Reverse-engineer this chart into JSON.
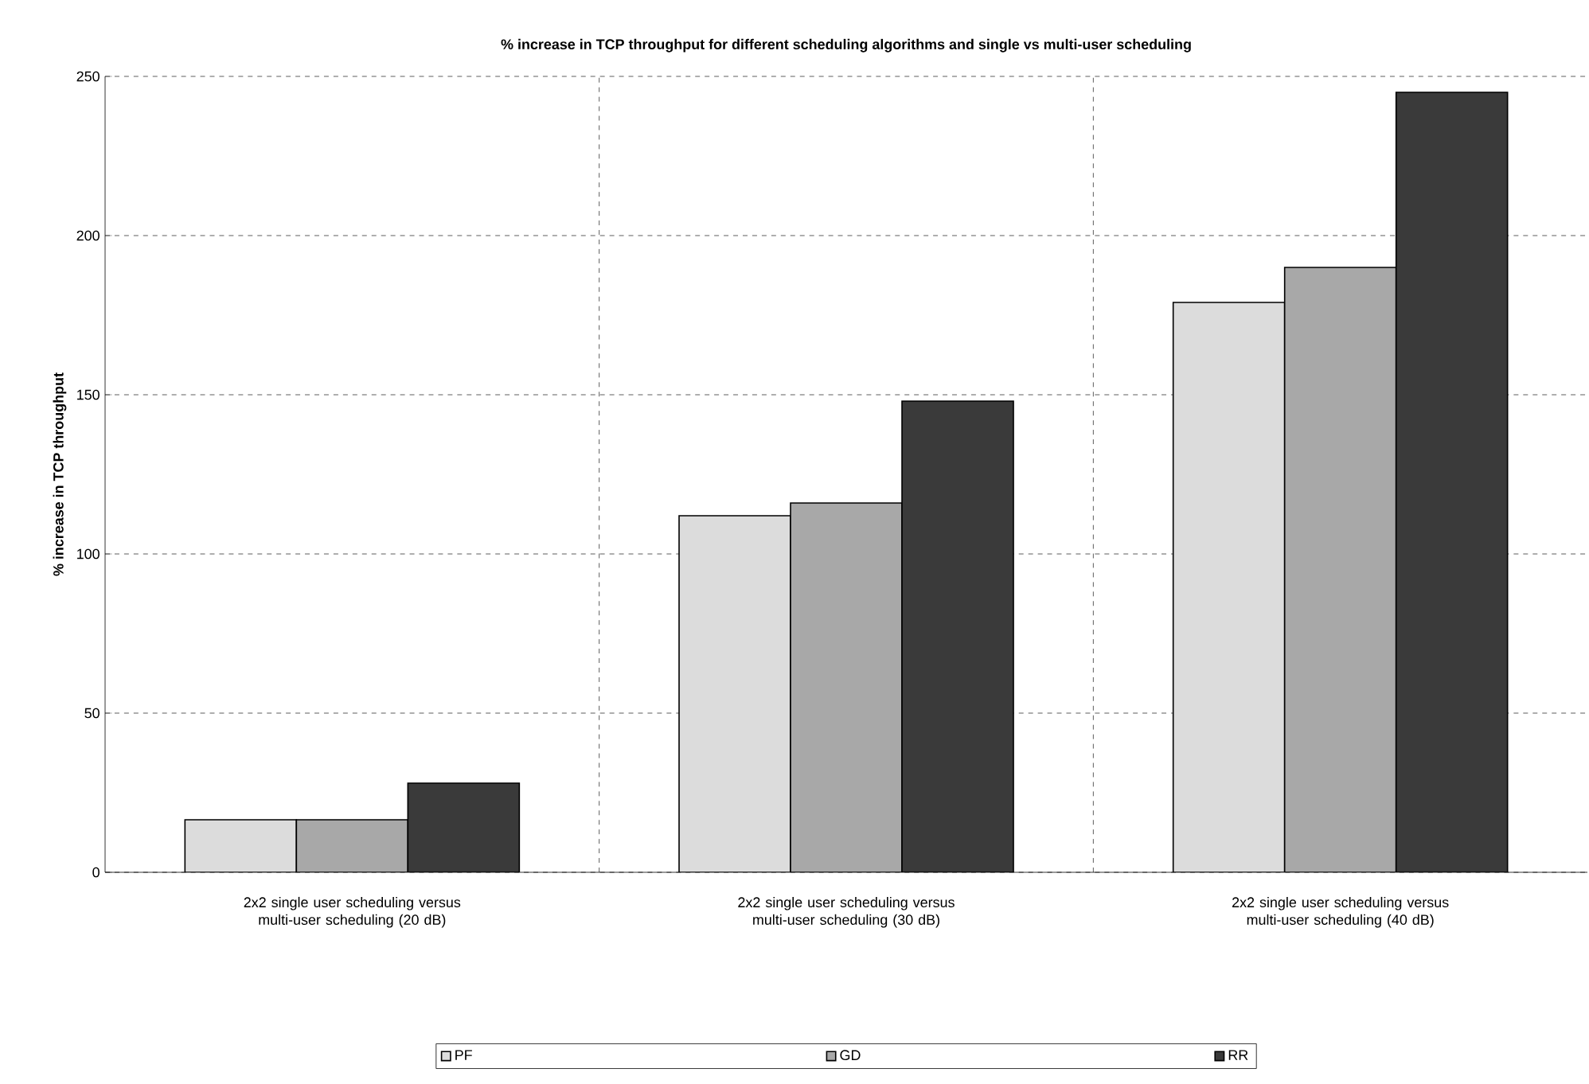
{
  "chart_data": {
    "type": "bar",
    "title": "% increase in TCP throughput for different scheduling algorithms and single vs multi-user scheduling",
    "ylabel": "% increase in TCP throughput",
    "categories": [
      "2x2 single user scheduling versus multi-user scheduling (20 dB)",
      "2x2 single user scheduling versus multi-user scheduling (30 dB)",
      "2x2 single user scheduling versus multi-user scheduling (40 dB)"
    ],
    "series": [
      {
        "name": "PF",
        "color": "#dcdcdc",
        "values": [
          16.5,
          112,
          179
        ]
      },
      {
        "name": "GD",
        "color": "#a8a8a8",
        "values": [
          16.5,
          116,
          190
        ]
      },
      {
        "name": "RR",
        "color": "#3a3a3a",
        "values": [
          28,
          148,
          245
        ]
      }
    ],
    "ylim": [
      0,
      250
    ],
    "yticks": [
      0,
      50,
      100,
      150,
      200,
      250
    ],
    "grid": true,
    "legend": "bottom"
  }
}
